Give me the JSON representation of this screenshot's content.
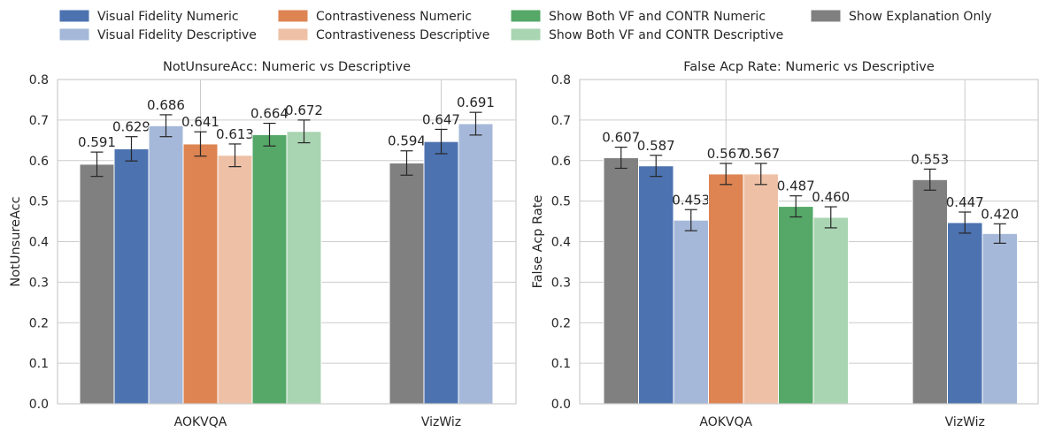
{
  "legend": [
    {
      "label": "Visual Fidelity Numeric",
      "color": "#4c72b0"
    },
    {
      "label": "Visual Fidelity Descriptive",
      "color": "#a5b8d9"
    },
    {
      "label": "Contrastiveness Numeric",
      "color": "#dd8452"
    },
    {
      "label": "Contrastiveness Descriptive",
      "color": "#eec1a6"
    },
    {
      "label": "Show Both VF and CONTR Numeric",
      "color": "#55a868"
    },
    {
      "label": "Show Both VF and CONTR Descriptive",
      "color": "#a9d5b2"
    },
    {
      "label": "Show Explanation Only",
      "color": "#808080"
    }
  ],
  "chart_data": [
    {
      "type": "bar",
      "title": "NotUnsureAcc: Numeric vs Descriptive",
      "xlabel": "",
      "ylabel": "NotUnsureAcc",
      "ylim": [
        0,
        0.8
      ],
      "yticks": [
        "0.0",
        "0.1",
        "0.2",
        "0.3",
        "0.4",
        "0.5",
        "0.6",
        "0.7",
        "0.8"
      ],
      "grid": true,
      "groups": [
        {
          "category": "AOKVQA",
          "bars": [
            {
              "series": "Show Explanation Only",
              "value": 0.591,
              "label": "0.591",
              "err": 0.03
            },
            {
              "series": "Visual Fidelity Numeric",
              "value": 0.629,
              "label": "0.629",
              "err": 0.03
            },
            {
              "series": "Visual Fidelity Descriptive",
              "value": 0.686,
              "label": "0.686",
              "err": 0.027
            },
            {
              "series": "Contrastiveness Numeric",
              "value": 0.641,
              "label": "0.641",
              "err": 0.03
            },
            {
              "series": "Contrastiveness Descriptive",
              "value": 0.613,
              "label": "0.613",
              "err": 0.028
            },
            {
              "series": "Show Both VF and CONTR Numeric",
              "value": 0.664,
              "label": "0.664",
              "err": 0.028
            },
            {
              "series": "Show Both VF and CONTR Descriptive",
              "value": 0.672,
              "label": "0.672",
              "err": 0.028
            }
          ]
        },
        {
          "category": "VizWiz",
          "bars": [
            {
              "series": "Show Explanation Only",
              "value": 0.594,
              "label": "0.594",
              "err": 0.03
            },
            {
              "series": "Visual Fidelity Numeric",
              "value": 0.647,
              "label": "0.647",
              "err": 0.03
            },
            {
              "series": "Visual Fidelity Descriptive",
              "value": 0.691,
              "label": "0.691",
              "err": 0.028
            }
          ]
        }
      ]
    },
    {
      "type": "bar",
      "title": "False Acp Rate: Numeric vs Descriptive",
      "xlabel": "",
      "ylabel": "False Acp Rate",
      "ylim": [
        0,
        0.8
      ],
      "yticks": [
        "0.0",
        "0.1",
        "0.2",
        "0.3",
        "0.4",
        "0.5",
        "0.6",
        "0.7",
        "0.8"
      ],
      "grid": true,
      "groups": [
        {
          "category": "AOKVQA",
          "bars": [
            {
              "series": "Show Explanation Only",
              "value": 0.607,
              "label": "0.607",
              "err": 0.026
            },
            {
              "series": "Visual Fidelity Numeric",
              "value": 0.587,
              "label": "0.587",
              "err": 0.026
            },
            {
              "series": "Visual Fidelity Descriptive",
              "value": 0.453,
              "label": "0.453",
              "err": 0.026
            },
            {
              "series": "Contrastiveness Numeric",
              "value": 0.567,
              "label": "0.567",
              "err": 0.026
            },
            {
              "series": "Contrastiveness Descriptive",
              "value": 0.567,
              "label": "0.567",
              "err": 0.026
            },
            {
              "series": "Show Both VF and CONTR Numeric",
              "value": 0.487,
              "label": "0.487",
              "err": 0.026
            },
            {
              "series": "Show Both VF and CONTR Descriptive",
              "value": 0.46,
              "label": "0.460",
              "err": 0.026
            }
          ]
        },
        {
          "category": "VizWiz",
          "bars": [
            {
              "series": "Show Explanation Only",
              "value": 0.553,
              "label": "0.553",
              "err": 0.026
            },
            {
              "series": "Visual Fidelity Numeric",
              "value": 0.447,
              "label": "0.447",
              "err": 0.026
            },
            {
              "series": "Visual Fidelity Descriptive",
              "value": 0.42,
              "label": "0.420",
              "err": 0.024
            }
          ]
        }
      ]
    }
  ]
}
